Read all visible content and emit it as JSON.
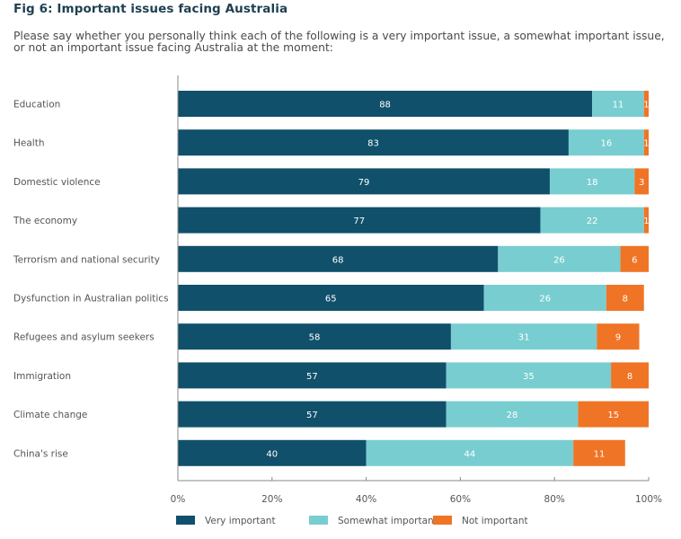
{
  "header": {
    "title": "Fig 6: Important issues facing Australia",
    "subtitle": "Please say whether you personally think each of the following is a very important issue, a somewhat important issue, or not an important issue facing Australia at the moment:"
  },
  "chart_data": {
    "type": "bar",
    "orientation": "horizontal",
    "stacked": true,
    "title": "Fig 6: Important issues facing Australia",
    "subtitle": "Please say whether you personally think each of the following is a very important issue, a somewhat important issue, or not an important issue facing Australia at the moment:",
    "xlabel": "",
    "ylabel": "",
    "xlim": [
      0,
      100
    ],
    "x_ticks": [
      "0%",
      "20%",
      "40%",
      "60%",
      "80%",
      "100%"
    ],
    "x_tick_values": [
      0,
      20,
      40,
      60,
      80,
      100
    ],
    "grid": false,
    "legend_position": "bottom-left",
    "categories": [
      "Education",
      "Health",
      "Domestic violence",
      "The economy",
      "Terrorism and national security",
      "Dysfunction in Australian politics",
      "Refugees and asylum seekers",
      "Immigration",
      "Climate change",
      "China's rise"
    ],
    "series": [
      {
        "name": "Very important",
        "color": "#10506b",
        "values": [
          88,
          83,
          79,
          77,
          68,
          65,
          58,
          57,
          57,
          40
        ]
      },
      {
        "name": "Somewhat important",
        "color": "#78cdd0",
        "values": [
          11,
          16,
          18,
          22,
          26,
          26,
          31,
          35,
          28,
          44
        ]
      },
      {
        "name": "Not important",
        "color": "#f07426",
        "values": [
          1,
          1,
          3,
          1,
          6,
          8,
          9,
          8,
          15,
          11
        ]
      }
    ]
  }
}
